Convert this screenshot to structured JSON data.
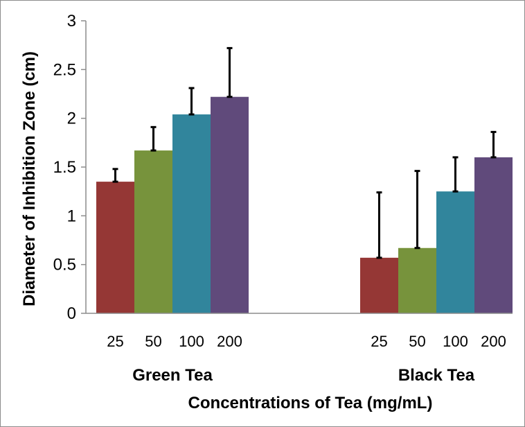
{
  "chart_data": {
    "type": "bar",
    "title": "",
    "xlabel": "Concentrations of Tea (mg/mL)",
    "ylabel": "Diameter of Inhibition Zone (cm)",
    "ylim": [
      0,
      3
    ],
    "yticks": [
      "0",
      "0.5",
      "1",
      "1.5",
      "2",
      "2.5",
      "3"
    ],
    "grid": false,
    "legend": "none",
    "groups": [
      {
        "name": "Green Tea",
        "categories": [
          "25",
          "50",
          "100",
          "200"
        ],
        "values": [
          1.35,
          1.67,
          2.04,
          2.22
        ],
        "errors": [
          0.13,
          0.24,
          0.27,
          0.5
        ]
      },
      {
        "name": "Black Tea",
        "categories": [
          "25",
          "50",
          "100",
          "200"
        ],
        "values": [
          0.57,
          0.67,
          1.25,
          1.6
        ],
        "errors": [
          0.67,
          0.79,
          0.35,
          0.26
        ]
      }
    ],
    "colors": [
      "#953735",
      "#77933c",
      "#31859c",
      "#604a7b"
    ]
  }
}
